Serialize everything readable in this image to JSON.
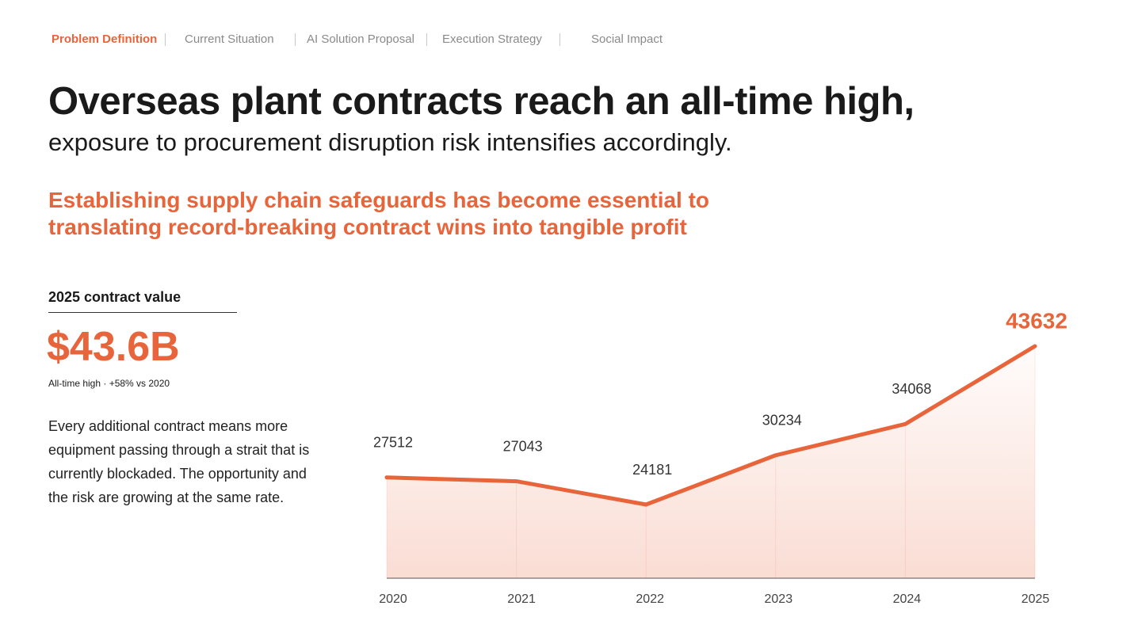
{
  "nav": {
    "items": [
      "Problem Definition",
      "Current Situation",
      "AI Solution Proposal",
      "Execution Strategy",
      "Social Impact"
    ]
  },
  "header": {
    "title": "Overseas plant contracts reach an all-time high,",
    "subtitle": "exposure to procurement disruption risk intensifies accordingly."
  },
  "callout": {
    "lines": [
      "Establishing supply chain safeguards has become essential to",
      "translating record-breaking contract wins into tangible profit"
    ]
  },
  "stat": {
    "label": "2025 contract value",
    "value": "$43.6B",
    "note": "All-time high · +58% vs 2020"
  },
  "body": "Every additional contract means more equipment passing through a strait that is currently blockaded. The opportunity and the risk are growing at the same rate.",
  "chart_data": {
    "type": "area",
    "x": [
      "2020",
      "2021",
      "2022",
      "2023",
      "2024",
      "2025"
    ],
    "values": [
      27512,
      27043,
      24181,
      30234,
      34068,
      43632
    ],
    "color": "#e8643a"
  }
}
